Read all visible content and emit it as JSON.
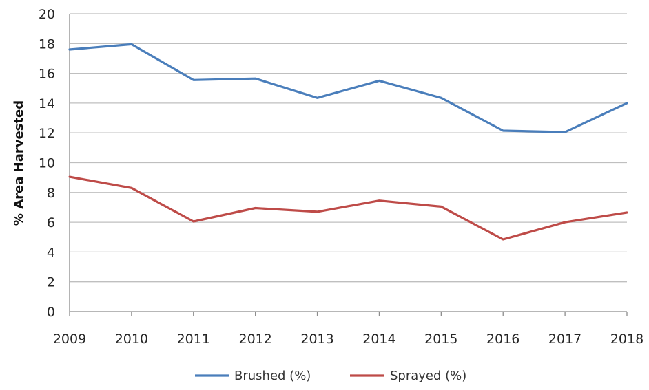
{
  "chart_data": {
    "type": "line",
    "title": "",
    "xlabel": "",
    "ylabel": "% Area Harvested",
    "x": [
      "2009",
      "2010",
      "2011",
      "2012",
      "2013",
      "2014",
      "2015",
      "2016",
      "2017",
      "2018"
    ],
    "ylim": [
      0,
      20
    ],
    "yticks": [
      "0",
      "2",
      "4",
      "6",
      "8",
      "10",
      "12",
      "14",
      "16",
      "18",
      "20"
    ],
    "grid": true,
    "legend_position": "bottom",
    "series": [
      {
        "name": "Brushed (%)",
        "color": "#4a7ebb",
        "values": [
          17.6,
          17.95,
          15.55,
          15.65,
          14.35,
          15.5,
          14.35,
          12.15,
          12.05,
          14.0
        ]
      },
      {
        "name": "Sprayed (%)",
        "color": "#be4b48",
        "values": [
          9.05,
          8.3,
          6.05,
          6.95,
          6.7,
          7.45,
          7.05,
          4.85,
          6.0,
          6.65
        ]
      }
    ]
  }
}
